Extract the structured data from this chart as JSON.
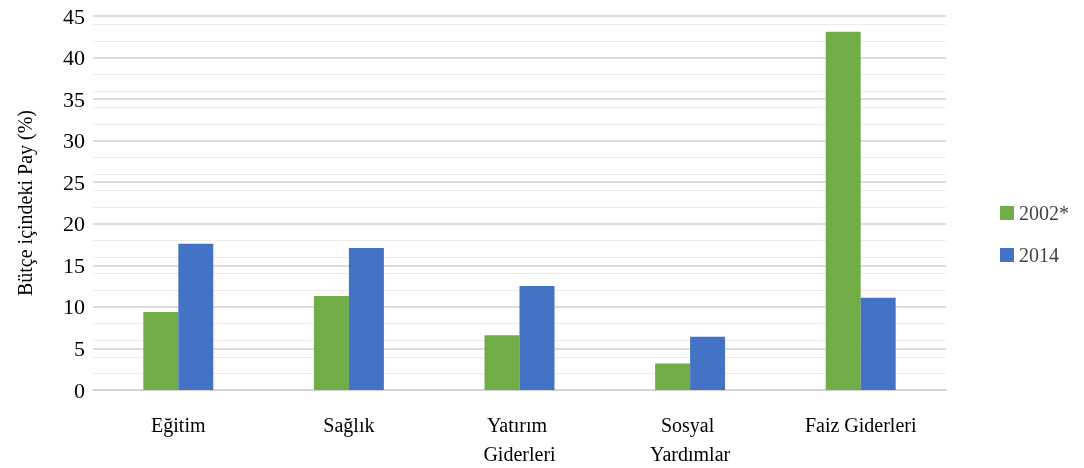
{
  "chart_data": {
    "type": "bar",
    "ylabel": "Bütçe içindeki Pay (%)",
    "categories": [
      "Eğitim",
      "Sağlık",
      "Yatırım Giderleri",
      "Sosyal Yardımlar",
      "Faiz Giderleri"
    ],
    "series": [
      {
        "name": "2002*",
        "color": "#70ad47",
        "values": [
          9.4,
          11.3,
          6.6,
          3.2,
          43.1
        ]
      },
      {
        "name": "2014",
        "color": "#4472c4",
        "values": [
          17.6,
          17.1,
          12.5,
          6.4,
          11.1
        ]
      }
    ],
    "ylim": [
      0,
      45
    ],
    "yticks": [
      0,
      5,
      10,
      15,
      20,
      25,
      30,
      35,
      40,
      45
    ],
    "grid": "y",
    "legend": "right"
  }
}
